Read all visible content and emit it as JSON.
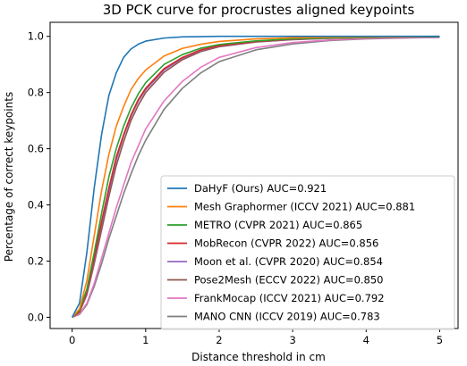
{
  "chart_data": {
    "type": "line",
    "title": "3D PCK curve for procrustes aligned keypoints",
    "xlabel": "Distance threshold in cm",
    "ylabel": "Percentage of correct keypoints",
    "xlim": [
      -0.3,
      5.25
    ],
    "ylim": [
      -0.04,
      1.05
    ],
    "xticks": [
      0,
      1,
      2,
      3,
      4,
      5
    ],
    "xtick_labels": [
      "0",
      "1",
      "2",
      "3",
      "4",
      "5"
    ],
    "yticks": [
      0.0,
      0.2,
      0.4,
      0.6,
      0.8,
      1.0
    ],
    "ytick_labels": [
      "0.0",
      "0.2",
      "0.4",
      "0.6",
      "0.8",
      "1.0"
    ],
    "grid": false,
    "legend_position": "lower-right",
    "x": [
      0,
      0.1,
      0.2,
      0.3,
      0.4,
      0.5,
      0.6,
      0.7,
      0.8,
      0.9,
      1.0,
      1.25,
      1.5,
      1.75,
      2.0,
      2.5,
      3.0,
      3.5,
      4.0,
      4.5,
      5.0
    ],
    "series": [
      {
        "name": "DaHyF (Ours) AUC=0.921",
        "color": "#1f77b4",
        "values": [
          0.0,
          0.05,
          0.23,
          0.46,
          0.65,
          0.79,
          0.87,
          0.925,
          0.955,
          0.972,
          0.983,
          0.994,
          0.998,
          0.999,
          1.0,
          1.0,
          1.0,
          1.0,
          1.0,
          1.0,
          1.0
        ]
      },
      {
        "name": "Mesh Graphormer (ICCV 2021) AUC=0.881",
        "color": "#ff7f0e",
        "values": [
          0.0,
          0.03,
          0.13,
          0.29,
          0.45,
          0.58,
          0.68,
          0.75,
          0.81,
          0.85,
          0.88,
          0.93,
          0.957,
          0.972,
          0.982,
          0.991,
          0.995,
          0.997,
          0.998,
          0.999,
          1.0
        ]
      },
      {
        "name": "METRO (CVPR 2021) AUC=0.865",
        "color": "#2ca02c",
        "values": [
          0.0,
          0.025,
          0.1,
          0.23,
          0.37,
          0.5,
          0.6,
          0.68,
          0.745,
          0.795,
          0.835,
          0.9,
          0.935,
          0.958,
          0.971,
          0.984,
          0.991,
          0.994,
          0.996,
          0.998,
          0.999
        ]
      },
      {
        "name": "MobRecon (CVPR 2022) AUC=0.856",
        "color": "#d62728",
        "values": [
          0.0,
          0.02,
          0.09,
          0.21,
          0.34,
          0.46,
          0.57,
          0.65,
          0.72,
          0.775,
          0.815,
          0.885,
          0.925,
          0.952,
          0.967,
          0.982,
          0.99,
          0.994,
          0.996,
          0.998,
          0.999
        ]
      },
      {
        "name": "Moon et al. (CVPR 2020) AUC=0.854",
        "color": "#9467bd",
        "values": [
          0.0,
          0.02,
          0.085,
          0.2,
          0.33,
          0.45,
          0.56,
          0.645,
          0.715,
          0.77,
          0.81,
          0.88,
          0.922,
          0.95,
          0.966,
          0.981,
          0.989,
          0.993,
          0.996,
          0.998,
          0.999
        ]
      },
      {
        "name": "Pose2Mesh (ECCV 2022) AUC=0.850",
        "color": "#8c564b",
        "values": [
          0.0,
          0.018,
          0.08,
          0.19,
          0.31,
          0.43,
          0.54,
          0.625,
          0.7,
          0.755,
          0.8,
          0.872,
          0.917,
          0.946,
          0.963,
          0.98,
          0.988,
          0.993,
          0.996,
          0.998,
          0.999
        ]
      },
      {
        "name": "FrankMocap (ICCV 2021) AUC=0.792",
        "color": "#e377c2",
        "values": [
          0.0,
          0.012,
          0.05,
          0.12,
          0.21,
          0.3,
          0.39,
          0.47,
          0.55,
          0.61,
          0.67,
          0.77,
          0.84,
          0.89,
          0.925,
          0.96,
          0.978,
          0.987,
          0.992,
          0.995,
          0.997
        ]
      },
      {
        "name": "MANO CNN (ICCV 2019) AUC=0.783",
        "color": "#7f7f7f",
        "values": [
          0.0,
          0.01,
          0.045,
          0.11,
          0.19,
          0.28,
          0.36,
          0.44,
          0.51,
          0.575,
          0.63,
          0.74,
          0.815,
          0.87,
          0.91,
          0.952,
          0.973,
          0.985,
          0.991,
          0.994,
          0.996
        ]
      }
    ]
  }
}
